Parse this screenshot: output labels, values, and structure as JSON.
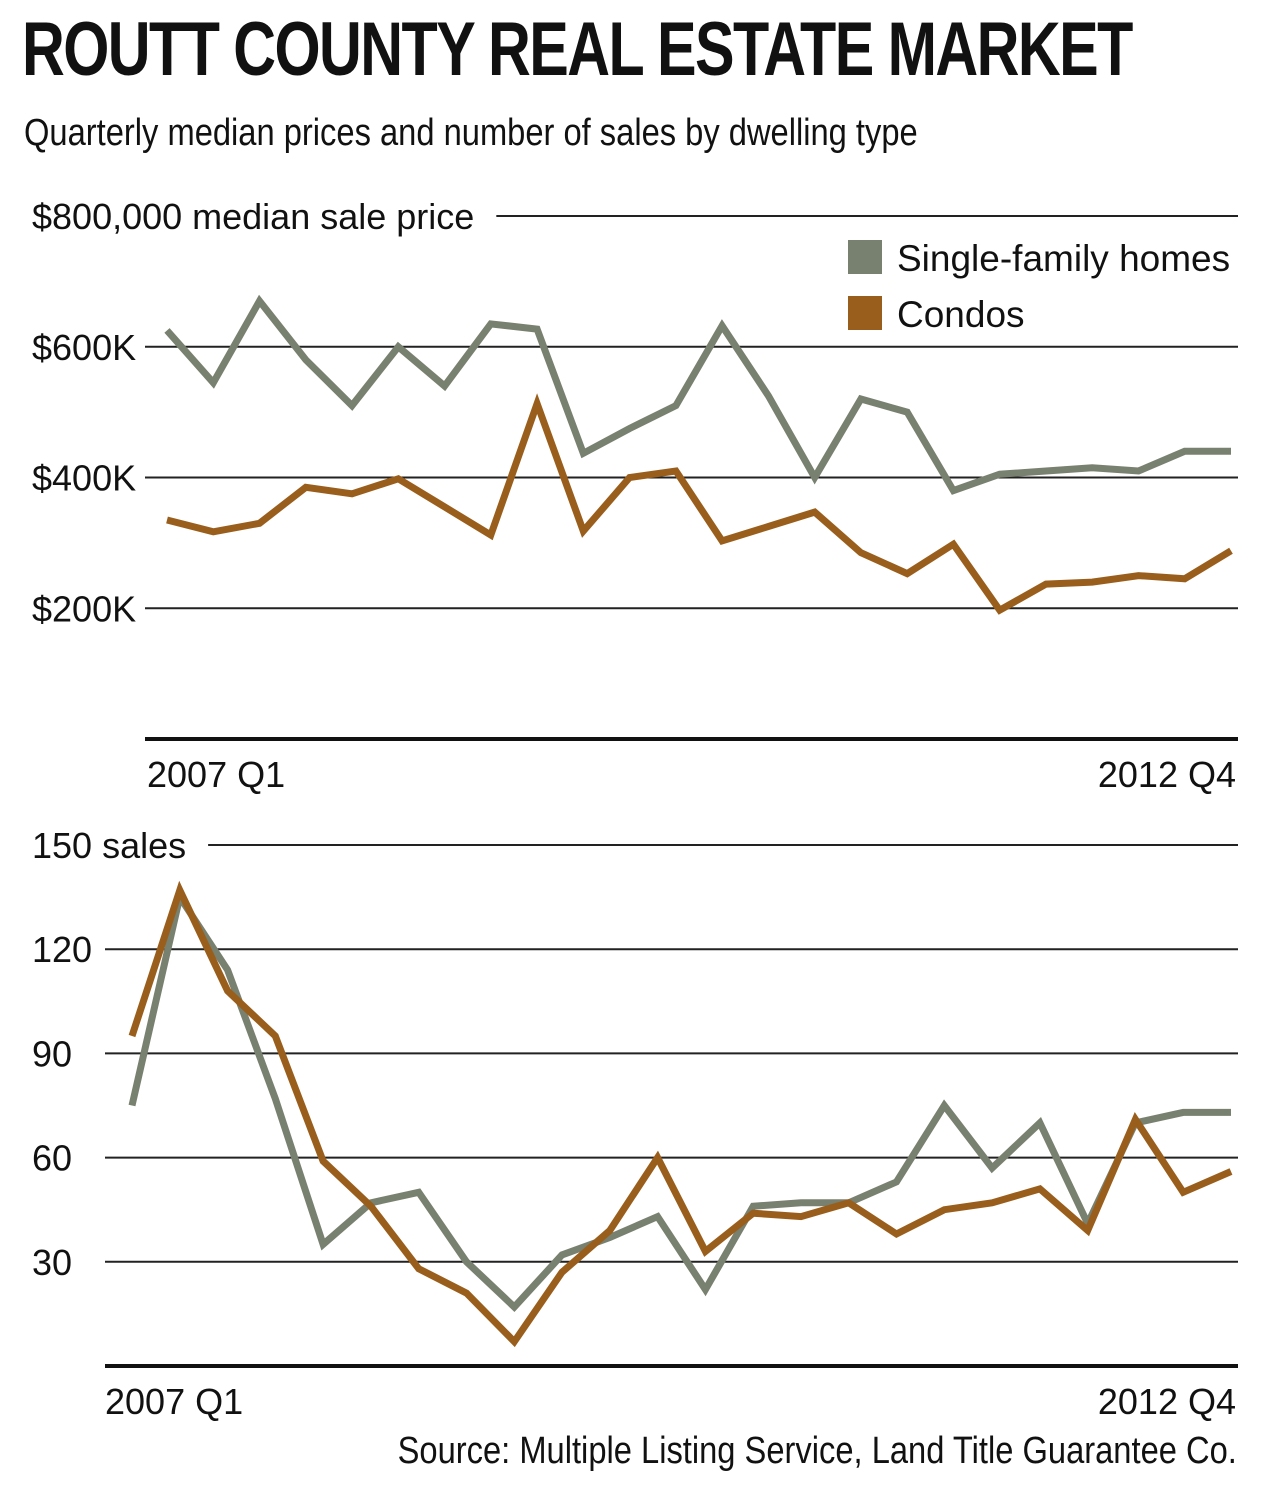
{
  "title": "ROUTT COUNTY REAL ESTATE MARKET",
  "subtitle": "Quarterly median prices and number of sales by dwelling type",
  "source": "Source: Multiple Listing Service, Land Title Guarantee Co.",
  "colors": {
    "single_family": "#78806f",
    "condos": "#9a5e1c",
    "grid": "#222222"
  },
  "legend": {
    "single_family": "Single-family homes",
    "condos": "Condos"
  },
  "chart_data": [
    {
      "type": "line",
      "x_start_label": "2007 Q1",
      "x_end_label": "2012 Q4",
      "y_tick_values": [
        200000,
        400000,
        600000,
        800000
      ],
      "y_tick_labels": [
        "$200K",
        "$400K",
        "$600K",
        "$800,000 median sale price"
      ],
      "ylim": [
        0,
        800000
      ],
      "grid": true,
      "legend_position": "top-right",
      "series": [
        {
          "name": "Single-family homes",
          "color_key": "single_family",
          "values": [
            625000,
            545000,
            670000,
            580000,
            510000,
            600000,
            540000,
            635000,
            627000,
            437000,
            475000,
            510000,
            632000,
            525000,
            400000,
            520000,
            500000,
            380000,
            405000,
            410000,
            415000,
            410000,
            440000,
            440000
          ]
        },
        {
          "name": "Condos",
          "color_key": "condos",
          "values": [
            335000,
            317000,
            330000,
            385000,
            375000,
            398000,
            355000,
            312000,
            513000,
            318000,
            400000,
            410000,
            303000,
            325000,
            347000,
            285000,
            253000,
            298000,
            197000,
            237000,
            240000,
            250000,
            245000,
            288000
          ]
        }
      ]
    },
    {
      "type": "line",
      "x_start_label": "2007 Q1",
      "x_end_label": "2012 Q4",
      "y_tick_values": [
        30,
        60,
        90,
        120,
        150
      ],
      "y_tick_labels": [
        "30",
        "60",
        "90",
        "120",
        "150 sales"
      ],
      "ylim": [
        0,
        150
      ],
      "grid": true,
      "series": [
        {
          "name": "Single-family homes",
          "color_key": "single_family",
          "values": [
            75,
            135,
            114,
            77,
            35,
            47,
            50,
            30,
            17,
            32,
            37,
            43,
            22,
            46,
            47,
            47,
            53,
            75,
            57,
            70,
            41,
            70,
            73,
            73
          ]
        },
        {
          "name": "Condos",
          "color_key": "condos",
          "values": [
            95,
            137,
            108,
            95,
            59,
            46,
            28,
            21,
            7,
            27,
            39,
            60,
            33,
            44,
            43,
            47,
            38,
            45,
            47,
            51,
            39,
            71,
            50,
            56
          ]
        }
      ]
    }
  ]
}
